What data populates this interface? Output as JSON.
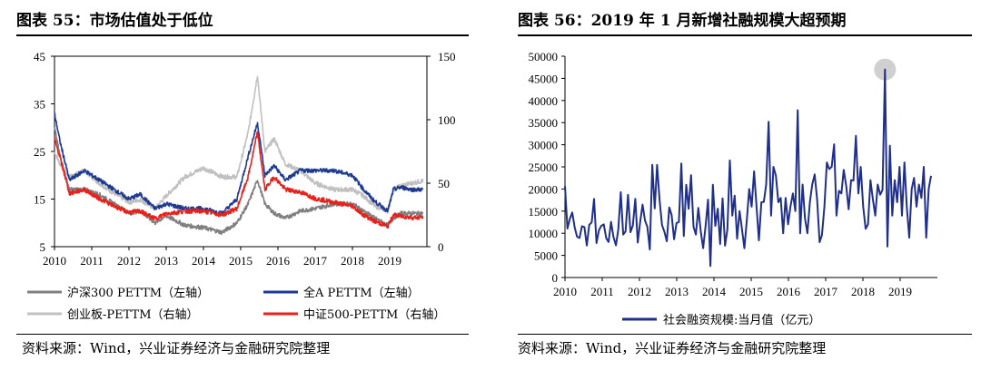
{
  "left": {
    "title": "图表 55：市场估值处于低位",
    "source": "资料来源：Wind，兴业证券经济与金融研究院整理",
    "chart_data": {
      "type": "line",
      "x_ticks": [
        "2010",
        "2011",
        "2012",
        "2013",
        "2014",
        "2015",
        "2016",
        "2017",
        "2018",
        "2019"
      ],
      "x_range": [
        2010.0,
        2020.0
      ],
      "y_left_ticks": [
        "5",
        "15",
        "25",
        "35",
        "45"
      ],
      "y_left_range": [
        5,
        45
      ],
      "y_right_ticks": [
        "0",
        "50",
        "100",
        "150"
      ],
      "y_right_range": [
        0,
        150
      ],
      "series": [
        {
          "name": "沪深300 PETTM（左轴）",
          "axis": "left",
          "color": "#808080",
          "points": [
            [
              2010.0,
              30
            ],
            [
              2010.15,
              24
            ],
            [
              2010.4,
              17
            ],
            [
              2010.8,
              17
            ],
            [
              2011.2,
              16
            ],
            [
              2011.6,
              14
            ],
            [
              2012.0,
              12
            ],
            [
              2012.3,
              12.5
            ],
            [
              2012.7,
              10
            ],
            [
              2013.0,
              11.5
            ],
            [
              2013.5,
              9.5
            ],
            [
              2014.0,
              9
            ],
            [
              2014.5,
              8
            ],
            [
              2014.9,
              10
            ],
            [
              2015.2,
              14
            ],
            [
              2015.45,
              19
            ],
            [
              2015.65,
              14
            ],
            [
              2015.9,
              12
            ],
            [
              2016.2,
              11
            ],
            [
              2016.6,
              12.5
            ],
            [
              2017.0,
              13
            ],
            [
              2017.5,
              14
            ],
            [
              2018.0,
              14
            ],
            [
              2018.3,
              12.5
            ],
            [
              2018.6,
              11
            ],
            [
              2018.95,
              9.5
            ],
            [
              2019.1,
              11
            ],
            [
              2019.3,
              12
            ],
            [
              2019.6,
              12
            ],
            [
              2019.9,
              12
            ]
          ]
        },
        {
          "name": "全A PETTM（左轴）",
          "axis": "left",
          "color": "#1f3a93",
          "points": [
            [
              2010.0,
              33
            ],
            [
              2010.15,
              27
            ],
            [
              2010.4,
              19
            ],
            [
              2010.8,
              21
            ],
            [
              2011.2,
              19
            ],
            [
              2011.6,
              17
            ],
            [
              2012.0,
              15
            ],
            [
              2012.3,
              16
            ],
            [
              2012.7,
              13
            ],
            [
              2013.0,
              14
            ],
            [
              2013.5,
              13
            ],
            [
              2014.0,
              13
            ],
            [
              2014.5,
              12
            ],
            [
              2014.9,
              15
            ],
            [
              2015.2,
              24
            ],
            [
              2015.45,
              31
            ],
            [
              2015.65,
              20
            ],
            [
              2015.9,
              22
            ],
            [
              2016.2,
              19
            ],
            [
              2016.6,
              21
            ],
            [
              2017.0,
              21
            ],
            [
              2017.5,
              21
            ],
            [
              2018.0,
              20
            ],
            [
              2018.3,
              17
            ],
            [
              2018.6,
              14.5
            ],
            [
              2018.95,
              12.5
            ],
            [
              2019.1,
              17
            ],
            [
              2019.3,
              17.5
            ],
            [
              2019.6,
              17
            ],
            [
              2019.9,
              17
            ]
          ]
        },
        {
          "name": "创业板-PETTM（右轴）",
          "axis": "right",
          "color": "#c0c0c0",
          "points": [
            [
              2010.0,
              75
            ],
            [
              2010.15,
              65
            ],
            [
              2010.4,
              55
            ],
            [
              2010.8,
              60
            ],
            [
              2011.2,
              50
            ],
            [
              2011.6,
              42
            ],
            [
              2012.0,
              35
            ],
            [
              2012.3,
              37
            ],
            [
              2012.7,
              30
            ],
            [
              2013.0,
              40
            ],
            [
              2013.5,
              55
            ],
            [
              2014.0,
              62
            ],
            [
              2014.5,
              55
            ],
            [
              2014.9,
              55
            ],
            [
              2015.2,
              90
            ],
            [
              2015.45,
              135
            ],
            [
              2015.65,
              75
            ],
            [
              2015.9,
              85
            ],
            [
              2016.2,
              65
            ],
            [
              2016.6,
              60
            ],
            [
              2017.0,
              50
            ],
            [
              2017.5,
              45
            ],
            [
              2018.0,
              45
            ],
            [
              2018.3,
              40
            ],
            [
              2018.6,
              32
            ],
            [
              2018.95,
              28
            ],
            [
              2019.1,
              45
            ],
            [
              2019.3,
              48
            ],
            [
              2019.6,
              50
            ],
            [
              2019.9,
              52
            ]
          ]
        },
        {
          "name": "中证500-PETTM（右轴）",
          "axis": "right",
          "color": "#e8211d",
          "points": [
            [
              2010.0,
              85
            ],
            [
              2010.15,
              70
            ],
            [
              2010.4,
              42
            ],
            [
              2010.8,
              45
            ],
            [
              2011.2,
              38
            ],
            [
              2011.6,
              32
            ],
            [
              2012.0,
              27
            ],
            [
              2012.3,
              28
            ],
            [
              2012.7,
              22
            ],
            [
              2013.0,
              26
            ],
            [
              2013.5,
              28
            ],
            [
              2014.0,
              28
            ],
            [
              2014.5,
              25
            ],
            [
              2014.9,
              30
            ],
            [
              2015.2,
              55
            ],
            [
              2015.45,
              90
            ],
            [
              2015.65,
              45
            ],
            [
              2015.9,
              55
            ],
            [
              2016.2,
              45
            ],
            [
              2016.6,
              43
            ],
            [
              2017.0,
              38
            ],
            [
              2017.5,
              35
            ],
            [
              2018.0,
              32
            ],
            [
              2018.3,
              25
            ],
            [
              2018.6,
              20
            ],
            [
              2018.95,
              16
            ],
            [
              2019.1,
              25
            ],
            [
              2019.3,
              24
            ],
            [
              2019.6,
              23
            ],
            [
              2019.9,
              23
            ]
          ]
        }
      ],
      "legend": [
        "沪深300 PETTM（左轴）",
        "全A PETTM（左轴）",
        "创业板-PETTM（右轴）",
        "中证500-PETTM（右轴）"
      ],
      "legend_position": "bottom"
    }
  },
  "right": {
    "title": "图表 56：2019 年 1 月新增社融规模大超预期",
    "source": "资料来源：Wind，兴业证券经济与金融研究院整理",
    "chart_data": {
      "type": "line",
      "x_ticks": [
        "2010",
        "2011",
        "2012",
        "2013",
        "2014",
        "2015",
        "2016",
        "2017",
        "2018",
        "2019"
      ],
      "x_range": [
        2010.0,
        2020.0
      ],
      "y_ticks": [
        "0",
        "5000",
        "10000",
        "15000",
        "20000",
        "25000",
        "30000",
        "35000",
        "40000",
        "45000",
        "50000"
      ],
      "y_range": [
        0,
        50000
      ],
      "series": [
        {
          "name": "社会融资规模:当月值（亿元）",
          "color": "#1f2f8a",
          "values": [
            20636,
            11064,
            13224,
            14692,
            11283,
            9221,
            8931,
            11596,
            11396,
            7233,
            11896,
            12452,
            17752,
            7791,
            10705,
            11675,
            12012,
            8892,
            8031,
            12587,
            9147,
            7271,
            10870,
            19282,
            9721,
            10431,
            18704,
            10255,
            11739,
            17780,
            7893,
            12412,
            16474,
            12884,
            11441,
            6322,
            25446,
            15614,
            25443,
            17629,
            11871,
            10375,
            8191,
            15841,
            14119,
            8645,
            12310,
            12532,
            25786,
            9387,
            20934,
            15511,
            23129,
            11471,
            9701,
            15735,
            10386,
            6645,
            11659,
            17604,
            2595,
            20964,
            11650,
            15550,
            7554,
            17898,
            7188,
            10853,
            26463,
            14002,
            18500,
            8740,
            15000,
            11000,
            6600,
            13000,
            20000,
            16000,
            24000,
            16000,
            8400,
            17000,
            17100,
            21000,
            35200,
            14000,
            25000,
            23000,
            17000,
            18000,
            10000,
            18000,
            12000,
            16000,
            19000,
            15000,
            37800,
            10000,
            21000,
            13400,
            10000,
            17000,
            21000,
            23300,
            17600,
            8000,
            9600,
            16000,
            26000,
            24500,
            25000,
            30100,
            14000,
            19600,
            19000,
            24300,
            20700,
            15400,
            22000,
            21900,
            32000,
            19000,
            25000,
            16000,
            11000,
            12000,
            22000,
            17600,
            14000,
            21000,
            18700,
            19800,
            47000,
            7000,
            29800,
            14000,
            22000,
            17000,
            25000,
            14000,
            26000,
            16000,
            9000,
            20000,
            22500,
            16000,
            21000,
            18000,
            25000,
            9000,
            20000,
            23000
          ]
        }
      ],
      "legend": [
        "社会融资规模:当月值（亿元）"
      ],
      "legend_position": "bottom",
      "annotation": "peak 2019-01"
    }
  }
}
